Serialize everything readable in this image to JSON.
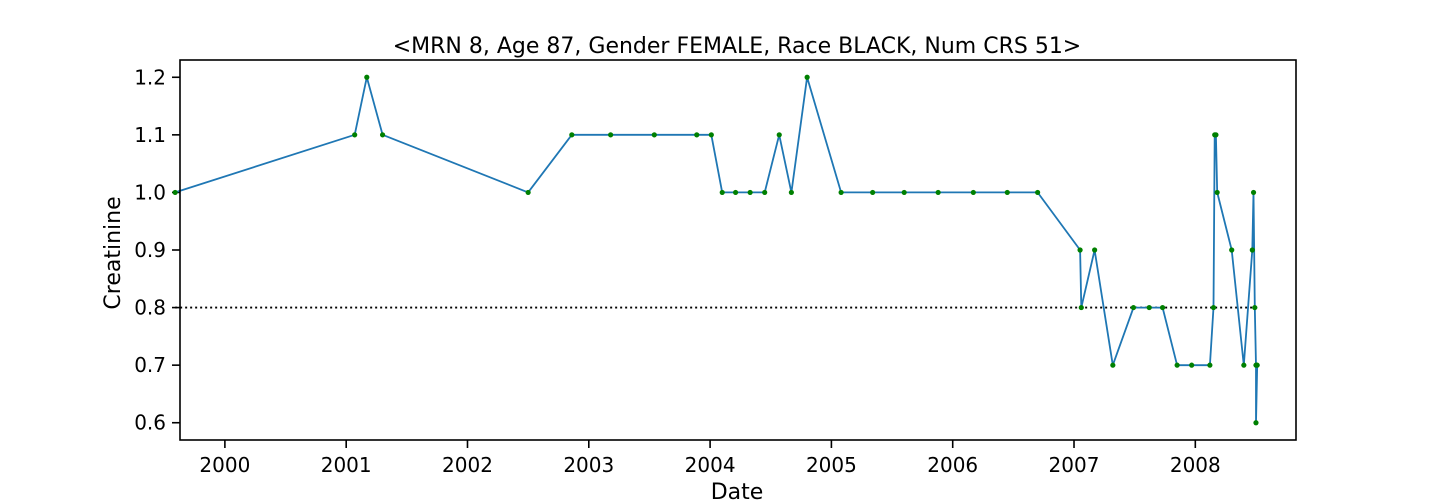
{
  "chart_data": {
    "type": "line",
    "title": "<MRN 8, Age 87, Gender FEMALE, Race BLACK, Num CRS 51>",
    "xlabel": "Date",
    "ylabel": "Creatinine",
    "xlim": [
      1999.63,
      2008.83
    ],
    "ylim": [
      0.57,
      1.23
    ],
    "xticks": [
      2000,
      2001,
      2002,
      2003,
      2004,
      2005,
      2006,
      2007,
      2008
    ],
    "yticks": [
      0.6,
      0.7,
      0.8,
      0.9,
      1.0,
      1.1,
      1.2
    ],
    "grid": false,
    "legend": "none",
    "series": [
      {
        "line_color": "#1f77b4",
        "marker_color": "#008000",
        "points": [
          [
            1999.59,
            1.0
          ],
          [
            2001.07,
            1.1
          ],
          [
            2001.17,
            1.2
          ],
          [
            2001.3,
            1.1
          ],
          [
            2002.5,
            1.0
          ],
          [
            2002.86,
            1.1
          ],
          [
            2003.18,
            1.1
          ],
          [
            2003.54,
            1.1
          ],
          [
            2003.89,
            1.1
          ],
          [
            2004.01,
            1.1
          ],
          [
            2004.1,
            1.0
          ],
          [
            2004.21,
            1.0
          ],
          [
            2004.33,
            1.0
          ],
          [
            2004.45,
            1.0
          ],
          [
            2004.57,
            1.1
          ],
          [
            2004.67,
            1.0
          ],
          [
            2004.8,
            1.2
          ],
          [
            2005.08,
            1.0
          ],
          [
            2005.34,
            1.0
          ],
          [
            2005.6,
            1.0
          ],
          [
            2005.88,
            1.0
          ],
          [
            2006.17,
            1.0
          ],
          [
            2006.45,
            1.0
          ],
          [
            2006.7,
            1.0
          ],
          [
            2007.05,
            0.9
          ],
          [
            2007.06,
            0.8
          ],
          [
            2007.17,
            0.9
          ],
          [
            2007.32,
            0.7
          ],
          [
            2007.49,
            0.8
          ],
          [
            2007.62,
            0.8
          ],
          [
            2007.73,
            0.8
          ],
          [
            2007.85,
            0.7
          ],
          [
            2007.97,
            0.7
          ],
          [
            2008.12,
            0.7
          ],
          [
            2008.15,
            0.8
          ],
          [
            2008.16,
            1.1
          ],
          [
            2008.17,
            1.1
          ],
          [
            2008.18,
            1.0
          ],
          [
            2008.3,
            0.9
          ],
          [
            2008.4,
            0.7
          ],
          [
            2008.47,
            0.9
          ],
          [
            2008.48,
            1.0
          ],
          [
            2008.49,
            0.8
          ],
          [
            2008.5,
            0.7
          ],
          [
            2008.5,
            0.6
          ],
          [
            2008.51,
            0.7
          ]
        ]
      }
    ],
    "reference_line": {
      "y": 0.8,
      "x_from": 1999.59,
      "x_to": 2008.51,
      "style": "dotted",
      "color": "#000000"
    }
  }
}
